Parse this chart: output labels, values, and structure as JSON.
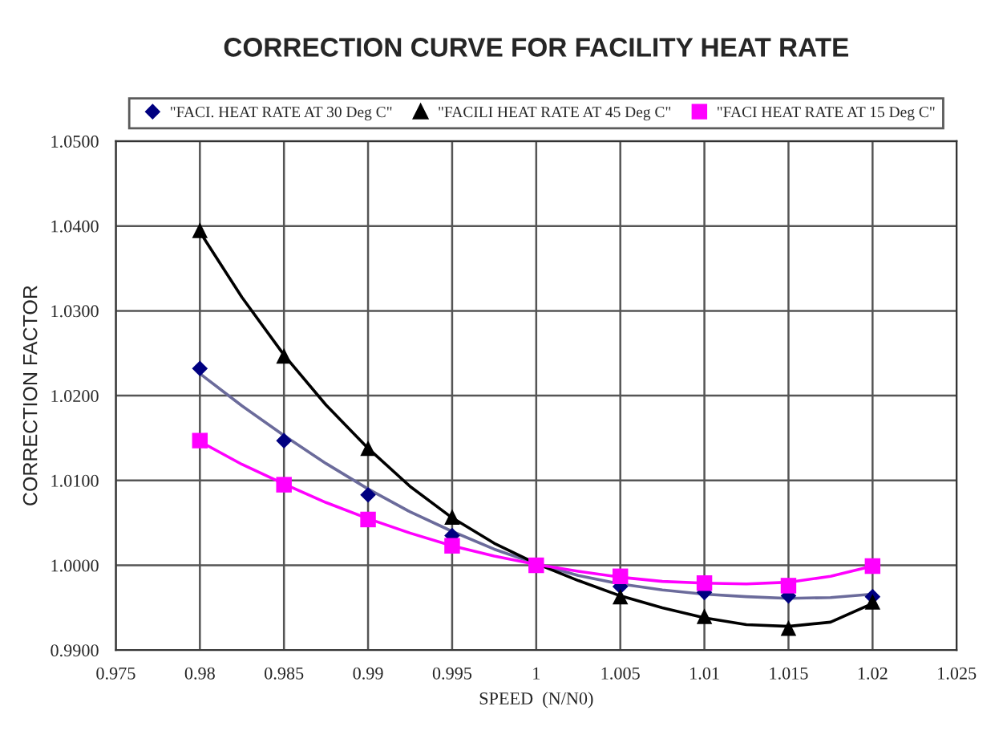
{
  "chart_data": {
    "type": "scatter",
    "title": "CORRECTION CURVE FOR FACILITY HEAT RATE",
    "xlabel": "SPEED  (N/N0)",
    "ylabel": "CORRECTION FACTOR",
    "xlim": [
      0.975,
      1.025
    ],
    "xticks": [
      0.975,
      0.98,
      0.985,
      0.99,
      0.995,
      1,
      1.005,
      1.01,
      1.015,
      1.02,
      1.025
    ],
    "ylim": [
      0.99,
      1.05
    ],
    "yticks": [
      {
        "value": 0.99,
        "label": "0.9900"
      },
      {
        "value": 1.0,
        "label": "1.0000"
      },
      {
        "value": 1.01,
        "label": "1.0100"
      },
      {
        "value": 1.02,
        "label": "1.0200"
      },
      {
        "value": 1.03,
        "label": "1.0300"
      },
      {
        "value": 1.04,
        "label": "1.0400"
      },
      {
        "value": 1.05,
        "label": "1.0500"
      }
    ],
    "grid": true,
    "legend": "top",
    "series": [
      {
        "type": "line",
        "color": "#6b6b9b",
        "marker": "none",
        "x": [
          0.98,
          0.9825,
          0.985,
          0.9875,
          0.99,
          0.9925,
          0.995,
          0.9975,
          1.0,
          1.0025,
          1.005,
          1.0075,
          1.01,
          1.0125,
          1.015,
          1.0175,
          1.02
        ],
        "values": [
          1.0226,
          1.0188,
          1.0153,
          1.012,
          1.009,
          1.0063,
          1.004,
          1.0019,
          1.0002,
          0.9988,
          0.9978,
          0.9971,
          0.9966,
          0.9963,
          0.9961,
          0.9962,
          0.9966
        ]
      },
      {
        "type": "line",
        "color": "#000000",
        "marker": "none",
        "x": [
          0.98,
          0.9825,
          0.985,
          0.9875,
          0.99,
          0.9925,
          0.995,
          0.9975,
          1.0,
          1.0025,
          1.005,
          1.0075,
          1.01,
          1.0125,
          1.015,
          1.0175,
          1.02
        ],
        "values": [
          1.0393,
          1.0316,
          1.0248,
          1.0189,
          1.0138,
          1.0093,
          1.0056,
          1.0026,
          1.0002,
          0.9982,
          0.9964,
          0.995,
          0.9938,
          0.993,
          0.9928,
          0.9933,
          0.9955
        ]
      },
      {
        "type": "line",
        "color": "#ff00ff",
        "marker": "none",
        "x": [
          0.98,
          0.9825,
          0.985,
          0.9875,
          0.99,
          0.9925,
          0.995,
          0.9975,
          1.0,
          1.0025,
          1.005,
          1.0075,
          1.01,
          1.0125,
          1.015,
          1.0175,
          1.02
        ],
        "values": [
          1.0146,
          1.0119,
          1.0096,
          1.0074,
          1.0055,
          1.0038,
          1.0023,
          1.0011,
          1.0001,
          0.9993,
          0.9986,
          0.9981,
          0.9979,
          0.9978,
          0.998,
          0.9987,
          0.9999
        ]
      },
      {
        "name": "\"FACI. HEAT RATE AT 30 Deg C\"",
        "color": "#000080",
        "marker": "diamond",
        "x": [
          0.98,
          0.985,
          0.99,
          0.995,
          1.0,
          1.005,
          1.01,
          1.015,
          1.02
        ],
        "values": [
          1.0232,
          1.0147,
          1.0083,
          1.0035,
          null,
          0.9975,
          0.9968,
          0.9964,
          0.9963
        ]
      },
      {
        "name": "\"FACILI HEAT RATE AT 45 Deg C\"",
        "color": "#000000",
        "marker": "triangle",
        "x": [
          0.98,
          0.985,
          0.99,
          0.995,
          1.0,
          1.005,
          1.01,
          1.015,
          1.02
        ],
        "values": [
          1.0395,
          1.0247,
          1.0138,
          1.0057,
          null,
          0.9963,
          0.994,
          0.9926,
          0.9957
        ]
      },
      {
        "name": "\"FACI HEAT RATE AT 15 Deg C\"",
        "color": "#ff00ff",
        "marker": "square",
        "x": [
          0.98,
          0.985,
          0.99,
          0.995,
          1.0,
          1.005,
          1.01,
          1.015,
          1.02
        ],
        "values": [
          1.0147,
          1.0095,
          1.0054,
          1.0023,
          1.0,
          0.9987,
          0.9979,
          0.9976,
          0.9999
        ]
      }
    ]
  }
}
